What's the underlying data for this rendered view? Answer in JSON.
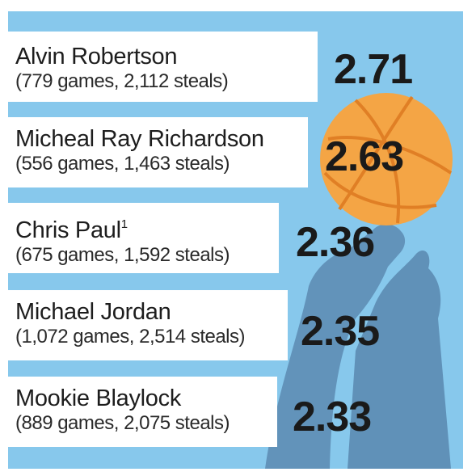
{
  "colors": {
    "background": "#87c8ec",
    "card": "#ffffff",
    "ball": "#f4a545",
    "ball_seams": "#e07f25",
    "arms": "#5e8eb5",
    "text": "#1a1a1a"
  },
  "icons": [
    "basketball-icon",
    "reaching-arms-illustration"
  ],
  "chart_data": {
    "type": "bar",
    "ylabel": "",
    "categories": [
      "Alvin Robertson",
      "Micheal Ray Richardson",
      "Chris Paul",
      "Michael Jordan",
      "Mookie Blaylock"
    ],
    "values": [
      2.71,
      2.63,
      2.36,
      2.35,
      2.33
    ],
    "value_labels": [
      "2.71",
      "2.63",
      "2.36",
      "2.35",
      "2.33"
    ],
    "rows": [
      {
        "name": "Alvin Robertson",
        "footnote": "",
        "details": "(779 games, 2,112 steals)",
        "value": "2.71"
      },
      {
        "name": "Micheal Ray Richardson",
        "footnote": "",
        "details": "(556 games, 1,463 steals)",
        "value": "2.63"
      },
      {
        "name": "Chris Paul",
        "footnote": "1",
        "details": "(675 games, 1,592 steals)",
        "value": "2.36"
      },
      {
        "name": "Michael Jordan",
        "footnote": "",
        "details": "(1,072 games, 2,514 steals)",
        "value": "2.35"
      },
      {
        "name": "Mookie Blaylock",
        "footnote": "",
        "details": "(889 games, 2,075 steals)",
        "value": "2.33"
      }
    ]
  }
}
